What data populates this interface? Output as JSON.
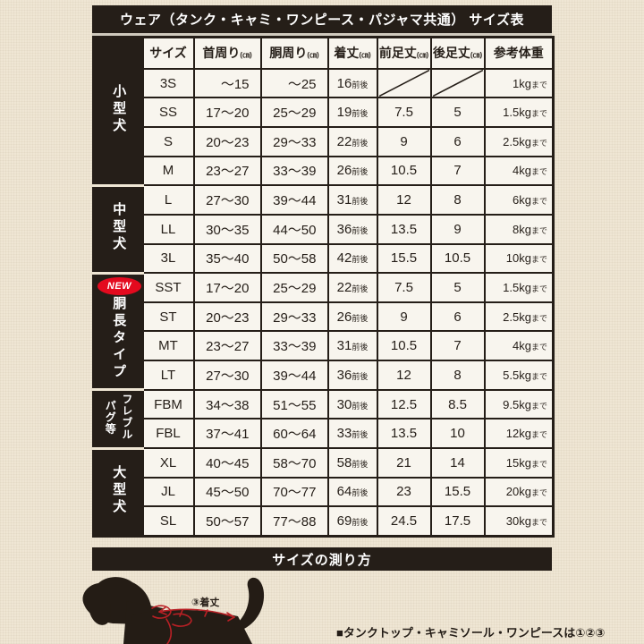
{
  "colors": {
    "ink_black": "#251e18",
    "badge_red": "#e40a1e",
    "paper_beige": "#efe6d4",
    "cell_white": "#f8f5ee",
    "measure_red": "#b92025"
  },
  "title": "ウェア（タンク・キャミ・ワンピース・パジャマ共通） サイズ表",
  "table": {
    "columns": [
      {
        "key": "size",
        "label": "サイズ",
        "unit": ""
      },
      {
        "key": "neck",
        "label": "首周り",
        "unit": "(㎝)"
      },
      {
        "key": "girth",
        "label": "胴周り",
        "unit": "(㎝)"
      },
      {
        "key": "length",
        "label": "着丈",
        "unit": "(㎝)"
      },
      {
        "key": "front",
        "label": "前足丈",
        "unit": "(㎝)"
      },
      {
        "key": "back",
        "label": "後足丈",
        "unit": "(㎝)"
      },
      {
        "key": "weight",
        "label": "参考体重",
        "unit": ""
      }
    ],
    "length_suffix": "前後",
    "weight_suffix": "まで",
    "groups": [
      {
        "key": "small-dog",
        "label_lines": [
          "小型犬"
        ],
        "badge": "",
        "rows": [
          {
            "size": "3S",
            "neck": "〜15",
            "girth": "〜25",
            "length": "16",
            "front": null,
            "back": null,
            "weight": "1kg"
          },
          {
            "size": "SS",
            "neck": "17〜20",
            "girth": "25〜29",
            "length": "19",
            "front": "7.5",
            "back": "5",
            "weight": "1.5kg"
          },
          {
            "size": "S",
            "neck": "20〜23",
            "girth": "29〜33",
            "length": "22",
            "front": "9",
            "back": "6",
            "weight": "2.5kg"
          },
          {
            "size": "M",
            "neck": "23〜27",
            "girth": "33〜39",
            "length": "26",
            "front": "10.5",
            "back": "7",
            "weight": "4kg"
          }
        ]
      },
      {
        "key": "medium-dog",
        "label_lines": [
          "中型犬"
        ],
        "badge": "",
        "rows": [
          {
            "size": "L",
            "neck": "27〜30",
            "girth": "39〜44",
            "length": "31",
            "front": "12",
            "back": "8",
            "weight": "6kg"
          },
          {
            "size": "LL",
            "neck": "30〜35",
            "girth": "44〜50",
            "length": "36",
            "front": "13.5",
            "back": "9",
            "weight": "8kg"
          },
          {
            "size": "3L",
            "neck": "35〜40",
            "girth": "50〜58",
            "length": "42",
            "front": "15.5",
            "back": "10.5",
            "weight": "10kg"
          }
        ]
      },
      {
        "key": "long-body-type",
        "label_lines": [
          "胴長タイプ"
        ],
        "badge": "NEW",
        "rows": [
          {
            "size": "SST",
            "neck": "17〜20",
            "girth": "25〜29",
            "length": "22",
            "front": "7.5",
            "back": "5",
            "weight": "1.5kg"
          },
          {
            "size": "ST",
            "neck": "20〜23",
            "girth": "29〜33",
            "length": "26",
            "front": "9",
            "back": "6",
            "weight": "2.5kg"
          },
          {
            "size": "MT",
            "neck": "23〜27",
            "girth": "33〜39",
            "length": "31",
            "front": "10.5",
            "back": "7",
            "weight": "4kg"
          },
          {
            "size": "LT",
            "neck": "27〜30",
            "girth": "39〜44",
            "length": "36",
            "front": "12",
            "back": "8",
            "weight": "5.5kg"
          }
        ]
      },
      {
        "key": "frenchbull-pug",
        "label_lines": [
          "フレブル",
          "パグ等"
        ],
        "badge": "",
        "rows": [
          {
            "size": "FBM",
            "neck": "34〜38",
            "girth": "51〜55",
            "length": "30",
            "front": "12.5",
            "back": "8.5",
            "weight": "9.5kg"
          },
          {
            "size": "FBL",
            "neck": "37〜41",
            "girth": "60〜64",
            "length": "33",
            "front": "13.5",
            "back": "10",
            "weight": "12kg"
          }
        ]
      },
      {
        "key": "large-dog",
        "label_lines": [
          "大型犬"
        ],
        "badge": "",
        "rows": [
          {
            "size": "XL",
            "neck": "40〜45",
            "girth": "58〜70",
            "length": "58",
            "front": "21",
            "back": "14",
            "weight": "15kg"
          },
          {
            "size": "JL",
            "neck": "45〜50",
            "girth": "70〜77",
            "length": "64",
            "front": "23",
            "back": "15.5",
            "weight": "20kg"
          },
          {
            "size": "SL",
            "neck": "50〜57",
            "girth": "77〜88",
            "length": "69",
            "front": "24.5",
            "back": "17.5",
            "weight": "30kg"
          }
        ]
      }
    ]
  },
  "measure_section": {
    "bar_label": "サイズの測り方",
    "dog_label": "③着丈",
    "note": "■タンクトップ・キャミソール・ワンピースは①②③"
  }
}
